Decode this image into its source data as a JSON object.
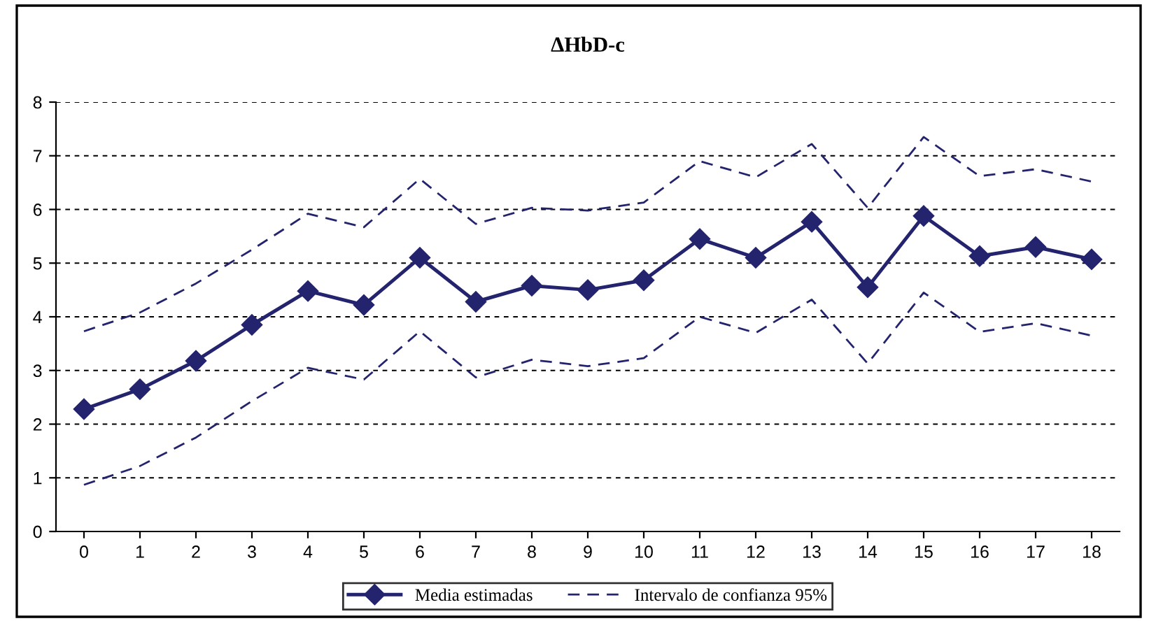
{
  "chart_data": {
    "type": "line",
    "title": "ΔHbD-c",
    "categories": [
      "0",
      "1",
      "2",
      "3",
      "4",
      "5",
      "6",
      "7",
      "8",
      "9",
      "10",
      "11",
      "12",
      "13",
      "14",
      "15",
      "16",
      "17",
      "18"
    ],
    "series": [
      {
        "name": "Media estimadas",
        "color": "#23236e",
        "marker": "diamond",
        "line_style": "solid",
        "values": [
          2.28,
          2.65,
          3.18,
          3.85,
          4.48,
          4.22,
          5.1,
          4.28,
          4.58,
          4.5,
          4.68,
          5.45,
          5.1,
          5.77,
          4.55,
          5.88,
          5.13,
          5.3,
          5.07
        ]
      },
      {
        "name": "Intervalo de confianza 95%",
        "color": "#23236e",
        "marker": "none",
        "line_style": "dashed",
        "values": [
          3.73,
          4.08,
          4.62,
          5.25,
          5.92,
          5.67,
          6.57,
          5.73,
          6.03,
          5.98,
          6.13,
          6.9,
          6.6,
          7.22,
          6.03,
          7.35,
          6.62,
          6.75,
          6.52
        ]
      },
      {
        "color": "#23236e",
        "marker": "none",
        "line_style": "dashed",
        "values": [
          0.87,
          1.22,
          1.75,
          2.43,
          3.05,
          2.83,
          3.73,
          2.87,
          3.2,
          3.08,
          3.23,
          4.0,
          3.7,
          4.32,
          3.13,
          4.45,
          3.72,
          3.88,
          3.65
        ]
      }
    ],
    "ylim": [
      0,
      8
    ],
    "yticks": [
      0,
      1,
      2,
      3,
      4,
      5,
      6,
      7,
      8
    ],
    "grid": "y",
    "legend": "bottom"
  }
}
